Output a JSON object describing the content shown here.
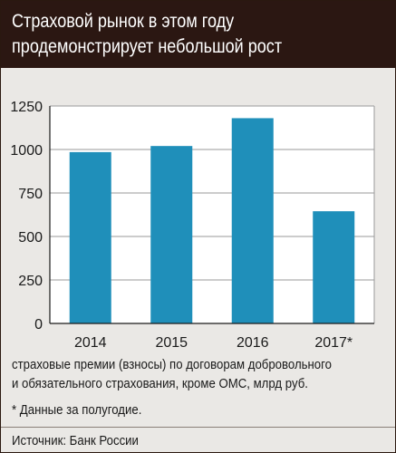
{
  "header": {
    "title_line1": "Страховой рынок в этом году",
    "title_line2": "продемонстрирует небольшой рост"
  },
  "chart_data": {
    "type": "bar",
    "categories": [
      "2014",
      "2015",
      "2016",
      "2017*"
    ],
    "values": [
      985,
      1020,
      1180,
      645
    ],
    "yticks": [
      0,
      250,
      500,
      750,
      1000,
      1250
    ],
    "ylim": [
      0,
      1250
    ],
    "grid": true,
    "bar_color": "#1f8fba",
    "ylabel": "",
    "xlabel": ""
  },
  "caption": {
    "line1": "страховые премии (взносы) по договорам добровольного",
    "line2": "и обязательного страхования, кроме ОМС, млрд руб.",
    "footnote": "* Данные за полугодие."
  },
  "source": "Источник: Банк России"
}
